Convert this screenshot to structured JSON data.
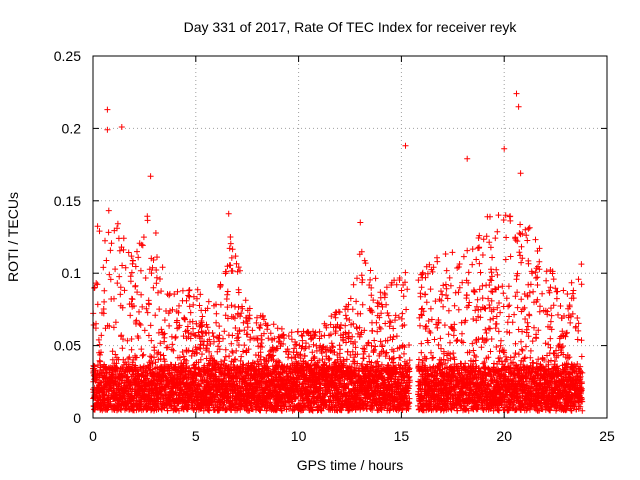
{
  "chart_data": {
    "type": "scatter",
    "title": "Day 331 of 2017, Rate Of TEC Index for receiver reyk",
    "xlabel": "GPS time / hours",
    "ylabel": "ROTI / TECUs",
    "xlim": [
      0,
      25
    ],
    "ylim": [
      0,
      0.25
    ],
    "xticks": [
      0,
      5,
      10,
      15,
      20,
      25
    ],
    "xtick_labels": [
      "0",
      "5",
      "10",
      "15",
      "20",
      "25"
    ],
    "yticks": [
      0,
      0.05,
      0.1,
      0.15,
      0.2,
      0.25
    ],
    "ytick_labels": [
      "0",
      "0.05",
      "0.1",
      "0.15",
      "0.2",
      "0.25"
    ],
    "grid": true,
    "marker": "+",
    "series_color": "#ff0000",
    "data_gap_hours": [
      15.4,
      15.8
    ],
    "x_data_range": [
      0,
      23.8
    ],
    "notable_points": [
      {
        "x": 0.7,
        "y": 0.213
      },
      {
        "x": 0.7,
        "y": 0.199
      },
      {
        "x": 1.4,
        "y": 0.201
      },
      {
        "x": 2.8,
        "y": 0.167
      },
      {
        "x": 6.6,
        "y": 0.141
      },
      {
        "x": 13.0,
        "y": 0.135
      },
      {
        "x": 15.2,
        "y": 0.188
      },
      {
        "x": 18.2,
        "y": 0.179
      },
      {
        "x": 20.0,
        "y": 0.186
      },
      {
        "x": 20.6,
        "y": 0.224
      },
      {
        "x": 20.7,
        "y": 0.215
      },
      {
        "x": 20.8,
        "y": 0.169
      }
    ],
    "envelope": [
      {
        "x": 0.0,
        "y": 0.12
      },
      {
        "x": 0.5,
        "y": 0.16
      },
      {
        "x": 1.0,
        "y": 0.14
      },
      {
        "x": 1.5,
        "y": 0.13
      },
      {
        "x": 2.0,
        "y": 0.11
      },
      {
        "x": 2.8,
        "y": 0.15
      },
      {
        "x": 3.5,
        "y": 0.1
      },
      {
        "x": 4.0,
        "y": 0.09
      },
      {
        "x": 5.0,
        "y": 0.09
      },
      {
        "x": 6.0,
        "y": 0.08
      },
      {
        "x": 6.7,
        "y": 0.13
      },
      {
        "x": 7.5,
        "y": 0.08
      },
      {
        "x": 8.5,
        "y": 0.07
      },
      {
        "x": 9.5,
        "y": 0.06
      },
      {
        "x": 10.5,
        "y": 0.06
      },
      {
        "x": 11.5,
        "y": 0.07
      },
      {
        "x": 12.5,
        "y": 0.08
      },
      {
        "x": 13.0,
        "y": 0.12
      },
      {
        "x": 14.0,
        "y": 0.09
      },
      {
        "x": 15.0,
        "y": 0.1
      },
      {
        "x": 15.4,
        "y": 0.11
      },
      {
        "x": 15.8,
        "y": 0.1
      },
      {
        "x": 16.5,
        "y": 0.11
      },
      {
        "x": 17.5,
        "y": 0.12
      },
      {
        "x": 18.5,
        "y": 0.12
      },
      {
        "x": 19.5,
        "y": 0.15
      },
      {
        "x": 20.5,
        "y": 0.14
      },
      {
        "x": 21.5,
        "y": 0.13
      },
      {
        "x": 22.5,
        "y": 0.1
      },
      {
        "x": 23.0,
        "y": 0.09
      },
      {
        "x": 23.8,
        "y": 0.11
      }
    ],
    "baseline_band": [
      0.005,
      0.035
    ]
  }
}
